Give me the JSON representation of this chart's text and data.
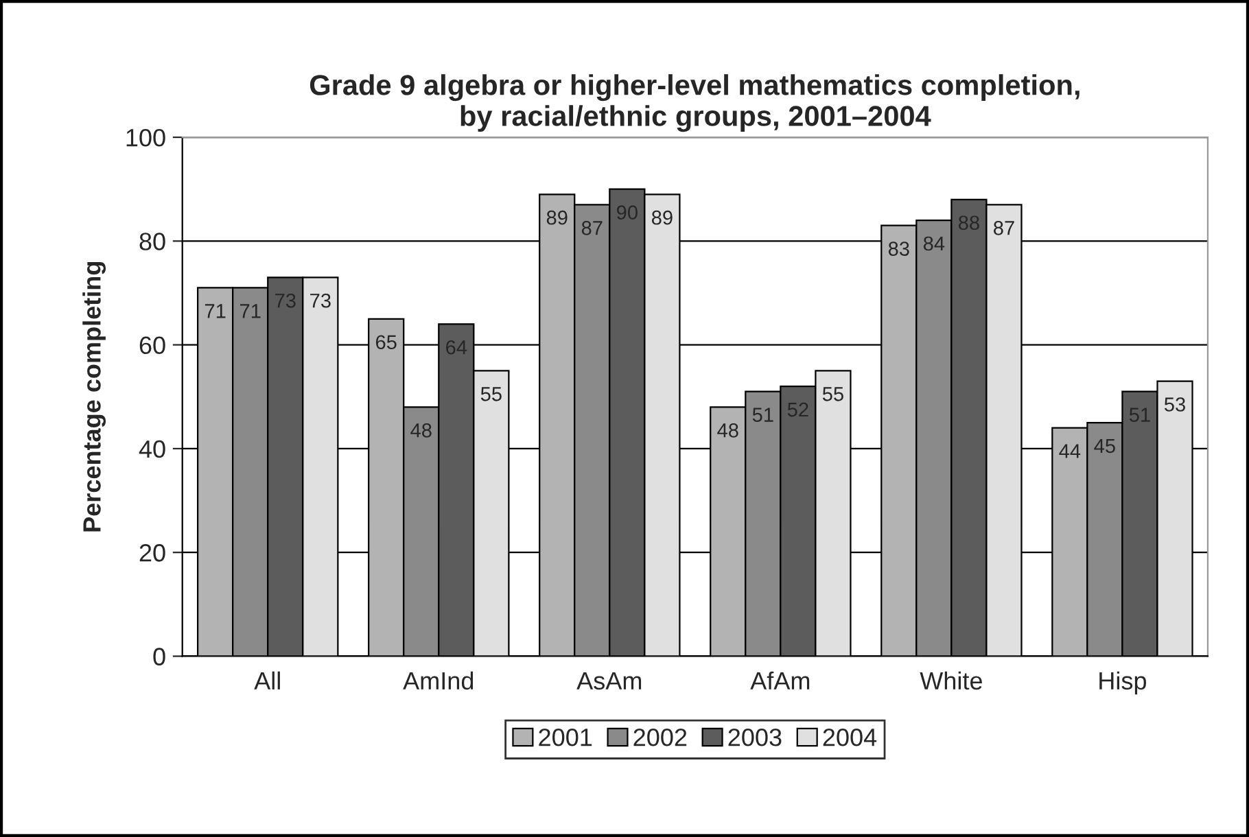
{
  "chart_data": {
    "type": "bar",
    "title": "Grade 9 algebra or higher-level mathematics completion,\nby racial/ethnic groups, 2001–2004",
    "ylabel": "Percentage completing",
    "categories": [
      "All",
      "AmInd",
      "AsAm",
      "AfAm",
      "White",
      "Hisp"
    ],
    "series": [
      {
        "name": "2001",
        "color": "#b3b3b3",
        "values": [
          71,
          65,
          89,
          48,
          83,
          44
        ]
      },
      {
        "name": "2002",
        "color": "#8a8a8a",
        "values": [
          71,
          48,
          87,
          51,
          84,
          45
        ]
      },
      {
        "name": "2003",
        "color": "#5c5c5c",
        "values": [
          73,
          64,
          90,
          52,
          88,
          51
        ]
      },
      {
        "name": "2004",
        "color": "#e0e0e0",
        "values": [
          73,
          55,
          89,
          55,
          87,
          53
        ]
      }
    ],
    "ylim": [
      0,
      100
    ],
    "yticks": [
      0,
      20,
      40,
      60,
      80,
      100
    ],
    "grid": "y",
    "legend": "bottom",
    "data_labels": true
  }
}
